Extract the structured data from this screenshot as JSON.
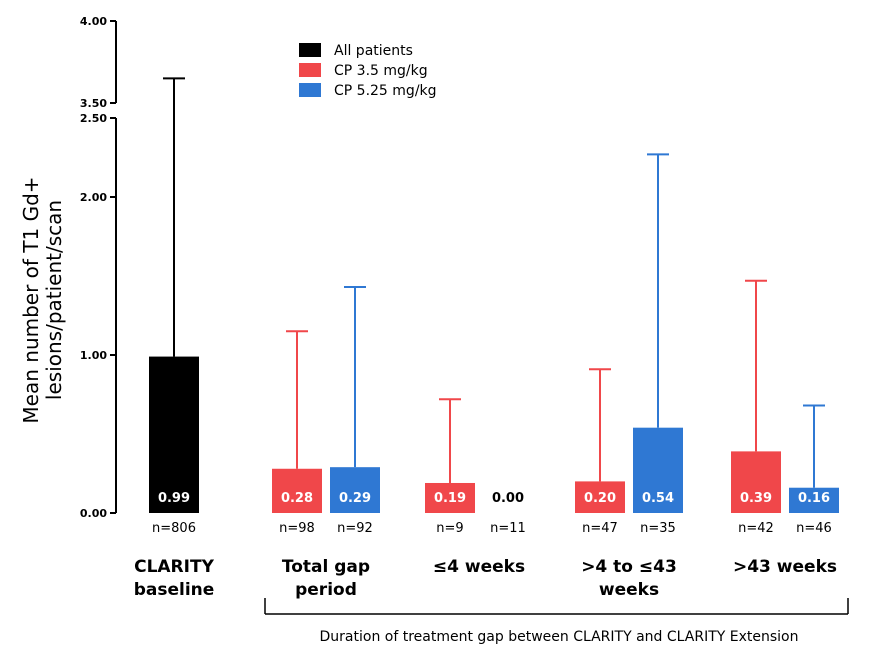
{
  "chart_data": {
    "type": "bar",
    "ylabel": [
      "Mean number of T1 Gd+",
      "lesions/patient/scan"
    ],
    "ylim": [
      0,
      4.0
    ],
    "axis_break": [
      2.5,
      3.5
    ],
    "yticks": [
      "0.00",
      "1.00",
      "2.00",
      "2.50",
      "3.50",
      "4.00"
    ],
    "legend": {
      "placement": "top-center",
      "entries": [
        {
          "label": "All patients",
          "color": "#000000"
        },
        {
          "label": "CP 3.5 mg/kg",
          "color": "#f0474a"
        },
        {
          "label": "CP 5.25 mg/kg",
          "color": "#2f78d3"
        }
      ]
    },
    "groups": [
      {
        "label": [
          "CLARITY",
          "baseline"
        ]
      },
      {
        "label": [
          "Total gap",
          "period"
        ]
      },
      {
        "label": [
          "≤4 weeks"
        ]
      },
      {
        "label": [
          ">4 to ≤43",
          "weeks"
        ]
      },
      {
        "label": [
          ">43 weeks"
        ]
      }
    ],
    "bars": [
      {
        "group": 0,
        "series": "All patients",
        "value": 0.99,
        "value_label": "0.99",
        "error_upper": 3.65,
        "n": "n=806"
      },
      {
        "group": 1,
        "series": "CP 3.5 mg/kg",
        "value": 0.28,
        "value_label": "0.28",
        "error_upper": 1.15,
        "n": "n=98"
      },
      {
        "group": 1,
        "series": "CP 5.25 mg/kg",
        "value": 0.29,
        "value_label": "0.29",
        "error_upper": 1.43,
        "n": "n=92"
      },
      {
        "group": 2,
        "series": "CP 3.5 mg/kg",
        "value": 0.19,
        "value_label": "0.19",
        "error_upper": 0.72,
        "n": "n=9"
      },
      {
        "group": 2,
        "series": "CP 5.25 mg/kg",
        "value": 0.0,
        "value_label": "0.00",
        "error_upper": null,
        "n": "n=11"
      },
      {
        "group": 3,
        "series": "CP 3.5 mg/kg",
        "value": 0.2,
        "value_label": "0.20",
        "error_upper": 0.91,
        "n": "n=47"
      },
      {
        "group": 3,
        "series": "CP 5.25 mg/kg",
        "value": 0.54,
        "value_label": "0.54",
        "error_upper": 2.27,
        "n": "n=35"
      },
      {
        "group": 4,
        "series": "CP 3.5 mg/kg",
        "value": 0.39,
        "value_label": "0.39",
        "error_upper": 1.47,
        "n": "n=42"
      },
      {
        "group": 4,
        "series": "CP 5.25 mg/kg",
        "value": 0.16,
        "value_label": "0.16",
        "error_upper": 0.68,
        "n": "n=46"
      }
    ],
    "bracket_label": "Duration of treatment gap between CLARITY and CLARITY Extension",
    "bracket_groups": [
      1,
      4
    ],
    "grid": false
  }
}
